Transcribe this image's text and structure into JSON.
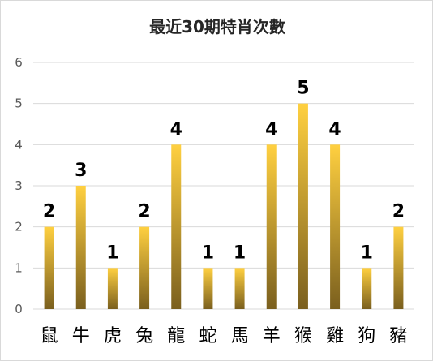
{
  "chart_data": {
    "type": "bar",
    "title": "最近30期特肖次數",
    "categories": [
      "鼠",
      "牛",
      "虎",
      "兔",
      "龍",
      "蛇",
      "馬",
      "羊",
      "猴",
      "雞",
      "狗",
      "豬"
    ],
    "values": [
      2,
      3,
      1,
      2,
      4,
      1,
      1,
      4,
      5,
      4,
      1,
      2
    ],
    "yticks": [
      "0",
      "1",
      "2",
      "3",
      "4",
      "5",
      "6"
    ],
    "ylim": [
      0,
      6
    ],
    "xlabel": "",
    "ylabel": "",
    "grid": true,
    "legend": "none",
    "bar_gradient": [
      "#FFD040",
      "#7A5F1E"
    ],
    "gridline_color": "#d9d9d9"
  }
}
